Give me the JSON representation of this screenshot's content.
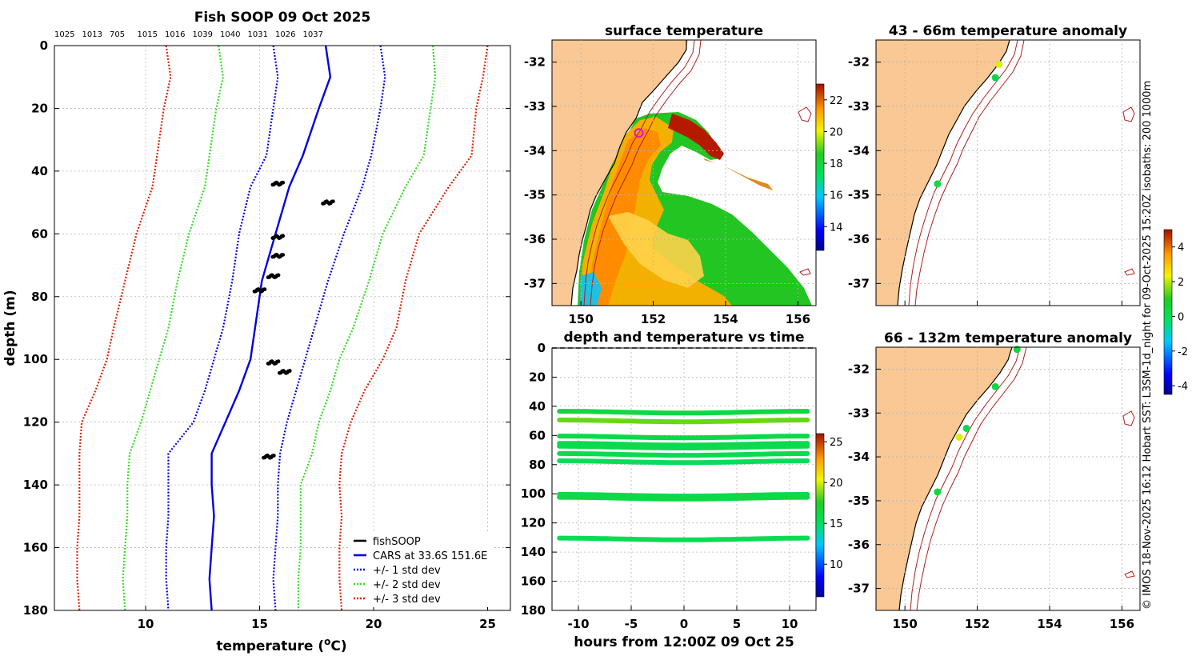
{
  "profile": {
    "title": "Fish SOOP 09 Oct 2025",
    "top_labels": [
      "1025",
      "1013",
      "705",
      "1015",
      "1016",
      "1039",
      "1040",
      "1031",
      "1026",
      "1037"
    ],
    "xlabel": "temperature (",
    "xlabel_sup": "o",
    "xlabel_tail": "C)",
    "ylabel": "depth (m)",
    "legend": [
      {
        "label": "fishSOOP",
        "color": "#000000",
        "style": "solid"
      },
      {
        "label": "CARS at 33.6S 151.6E",
        "color": "#0000e0",
        "style": "solid"
      },
      {
        "label": "+/- 1 std dev",
        "color": "#0000e0",
        "style": "dotted"
      },
      {
        "label": "+/- 2 std dev",
        "color": "#33dd22",
        "style": "dotted"
      },
      {
        "label": "+/- 3 std dev",
        "color": "#e02000",
        "style": "dotted"
      }
    ]
  },
  "surface": {
    "title": "surface temperature"
  },
  "timeseries": {
    "title": "depth and temperature vs time",
    "xlabel": "hours from 12:00Z 09 Oct 25"
  },
  "anom1": {
    "title": "43 - 66m temperature anomaly"
  },
  "anom2": {
    "title": "66 - 132m temperature anomaly"
  },
  "side_note": "© IMOS 18-Nov-2025 16:12 Hobart SST: L3SM-1d_night for 09-Oct-2025 15:20Z isobaths: 200  1000m",
  "colors": {
    "land": "#f9c894",
    "mean": "#0000e0",
    "sd1": "#0000e0",
    "sd2": "#33dd22",
    "sd3": "#e02000",
    "isobath": "#b02020"
  },
  "chart_data": [
    {
      "type": "line",
      "name": "profile",
      "xlim": [
        6,
        26
      ],
      "ylim": [
        180,
        0
      ],
      "xticks": [
        10,
        15,
        20,
        25
      ],
      "yticks": [
        0,
        20,
        40,
        60,
        80,
        100,
        120,
        140,
        160,
        180
      ],
      "depth": [
        0,
        10,
        20,
        35,
        45,
        60,
        75,
        90,
        100,
        110,
        120,
        130,
        140,
        150,
        160,
        170,
        180
      ],
      "series": [
        {
          "name": "CARS at 33.6S 151.6E",
          "style": "solid",
          "color": "#0000e0",
          "values": [
            17.9,
            18.1,
            17.6,
            16.9,
            16.3,
            15.7,
            15.1,
            14.8,
            14.6,
            14.1,
            13.5,
            12.9,
            12.9,
            13.0,
            12.9,
            12.8,
            12.9
          ]
        },
        {
          "name": "+1 std dev",
          "style": "dotted",
          "color": "#0000e0",
          "values": [
            20.3,
            20.5,
            20.3,
            19.9,
            19.5,
            18.7,
            18.0,
            17.4,
            17.0,
            16.6,
            16.2,
            15.9,
            15.8,
            15.8,
            15.7,
            15.6,
            15.7
          ]
        },
        {
          "name": "-1 std dev",
          "style": "dotted",
          "color": "#0000e0",
          "values": [
            15.6,
            15.8,
            15.6,
            15.3,
            14.6,
            14.1,
            13.8,
            13.4,
            13.0,
            12.6,
            12.1,
            11.0,
            11.0,
            11.0,
            10.9,
            10.9,
            11.0
          ]
        },
        {
          "name": "+2 std dev",
          "style": "dotted",
          "color": "#33dd22",
          "values": [
            22.6,
            22.7,
            22.5,
            22.2,
            21.4,
            20.4,
            19.8,
            19.1,
            18.5,
            18.1,
            17.6,
            17.3,
            16.8,
            16.8,
            16.8,
            16.7,
            16.7
          ]
        },
        {
          "name": "-2 std dev",
          "style": "dotted",
          "color": "#33dd22",
          "values": [
            13.2,
            13.4,
            13.1,
            12.8,
            12.6,
            11.9,
            11.4,
            11.0,
            10.6,
            10.2,
            9.8,
            9.3,
            9.2,
            9.2,
            9.1,
            9.0,
            9.1
          ]
        },
        {
          "name": "+3 std dev",
          "style": "dotted",
          "color": "#e02000",
          "values": [
            25.0,
            24.8,
            24.5,
            24.3,
            23.3,
            22.0,
            21.4,
            21.0,
            20.4,
            19.6,
            19.0,
            18.6,
            18.5,
            18.6,
            18.5,
            18.5,
            18.6
          ]
        },
        {
          "name": "-3 std dev",
          "style": "dotted",
          "color": "#e02000",
          "values": [
            10.9,
            11.1,
            10.8,
            10.5,
            10.3,
            9.6,
            9.1,
            8.6,
            8.3,
            7.8,
            7.2,
            7.1,
            7.1,
            7.1,
            7.0,
            7.0,
            7.1
          ]
        }
      ],
      "fishsoop": [
        {
          "t": 15.8,
          "d": 44
        },
        {
          "t": 15.8,
          "d": 61
        },
        {
          "t": 15.8,
          "d": 67
        },
        {
          "t": 15.6,
          "d": 73.5
        },
        {
          "t": 15.0,
          "d": 78
        },
        {
          "t": 15.6,
          "d": 101
        },
        {
          "t": 16.1,
          "d": 104
        },
        {
          "t": 15.4,
          "d": 131
        },
        {
          "t": 18.0,
          "d": 50
        }
      ]
    },
    {
      "type": "heatmap",
      "name": "surface temperature",
      "xlim": [
        149.2,
        156.5
      ],
      "ylim": [
        -37.5,
        -31.5
      ],
      "xticks": [
        150,
        152,
        154,
        156
      ],
      "yticks": [
        -32,
        -33,
        -34,
        -35,
        -36,
        -37
      ],
      "colorbar": {
        "min": 12.5,
        "max": 23,
        "ticks": [
          14,
          16,
          18,
          20,
          22
        ]
      },
      "vessel_position": {
        "lon": 151.6,
        "lat": -33.6
      }
    },
    {
      "type": "scatter",
      "name": "depth and temperature vs time",
      "xlim": [
        -12.5,
        12.5
      ],
      "ylim": [
        180,
        0
      ],
      "xticks": [
        -10,
        -5,
        0,
        5,
        10
      ],
      "yticks": [
        0,
        20,
        40,
        60,
        80,
        100,
        120,
        140,
        160,
        180
      ],
      "colorbar": {
        "min": 6,
        "max": 26,
        "ticks": [
          10,
          15,
          20,
          25
        ]
      },
      "bands": [
        {
          "depth": 44,
          "temp": 16.2
        },
        {
          "depth": 50,
          "temp": 18.5
        },
        {
          "depth": 61,
          "temp": 16.0
        },
        {
          "depth": 66,
          "temp": 15.8
        },
        {
          "depth": 68,
          "temp": 15.9
        },
        {
          "depth": 73,
          "temp": 15.7
        },
        {
          "depth": 78,
          "temp": 15.3
        },
        {
          "depth": 101,
          "temp": 15.9
        },
        {
          "depth": 103,
          "temp": 16.1
        },
        {
          "depth": 131,
          "temp": 15.5
        }
      ]
    },
    {
      "type": "scatter",
      "name": "43 - 66m temperature anomaly",
      "xlim": [
        149.2,
        156.5
      ],
      "ylim": [
        -37.5,
        -31.5
      ],
      "xticks": [
        150,
        152,
        154,
        156
      ],
      "yticks": [
        -32,
        -33,
        -34,
        -35,
        -36,
        -37
      ],
      "points": [
        {
          "lon": 152.6,
          "lat": -32.05,
          "anom": 2.2
        },
        {
          "lon": 152.5,
          "lat": -32.35,
          "anom": 0.3
        },
        {
          "lon": 150.9,
          "lat": -34.75,
          "anom": 0.2
        }
      ]
    },
    {
      "type": "scatter",
      "name": "66 - 132m temperature anomaly",
      "xlim": [
        149.2,
        156.5
      ],
      "ylim": [
        -37.5,
        -31.5
      ],
      "xticks": [
        150,
        152,
        154,
        156
      ],
      "yticks": [
        -32,
        -33,
        -34,
        -35,
        -36,
        -37
      ],
      "colorbar": {
        "min": -4.5,
        "max": 5,
        "ticks": [
          -4,
          -2,
          0,
          2,
          4
        ]
      },
      "points": [
        {
          "lon": 153.1,
          "lat": -31.55,
          "anom": 0.5
        },
        {
          "lon": 152.5,
          "lat": -32.4,
          "anom": 0.3
        },
        {
          "lon": 151.7,
          "lat": -33.35,
          "anom": 0.2
        },
        {
          "lon": 151.5,
          "lat": -33.55,
          "anom": 2.2
        },
        {
          "lon": 150.9,
          "lat": -34.8,
          "anom": 0.4
        }
      ]
    }
  ]
}
